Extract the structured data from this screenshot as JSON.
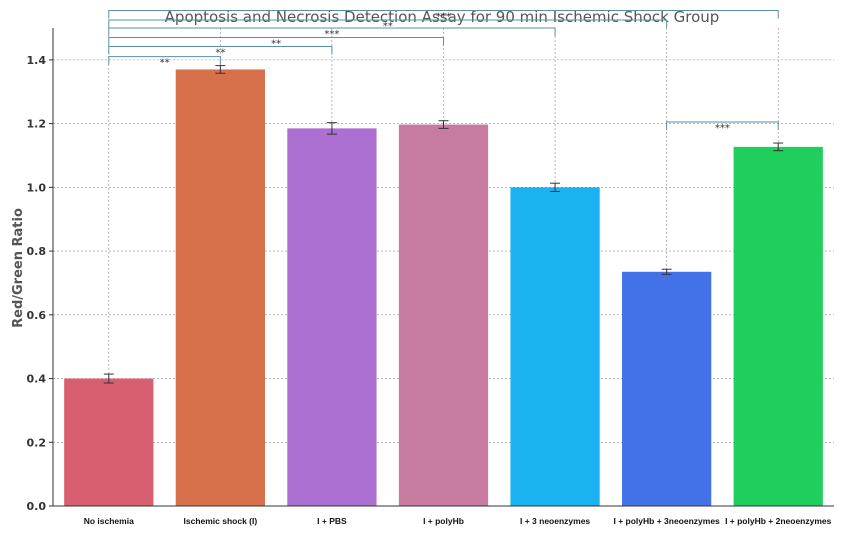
{
  "chart_data": {
    "type": "bar",
    "title": "Apoptosis and Necrosis Detection Assay for 90 min Ischemic Shock Group",
    "xlabel": "",
    "ylabel": "Red/Green Ratio",
    "ylim": [
      0,
      1.5
    ],
    "yticks": [
      "0.0",
      "0.2",
      "0.4",
      "0.6",
      "0.8",
      "1.0",
      "1.2",
      "1.4"
    ],
    "grid": true,
    "categories": [
      "No ischemia",
      "Ischemic shock (I)",
      "I + PBS",
      "I + polyHb",
      "I + 3 neoenzymes",
      "I + polyHb + 3neoenzymes",
      "I + polyHb + 2neoenzymes"
    ],
    "values": [
      0.4,
      1.37,
      1.185,
      1.197,
      1.0,
      0.735,
      1.127
    ],
    "errors": [
      0.014,
      0.012,
      0.018,
      0.012,
      0.013,
      0.008,
      0.012
    ],
    "colors": [
      "#d75f6f",
      "#d7714b",
      "#ac6fd2",
      "#c67b9f",
      "#1ab2f0",
      "#4271e8",
      "#1fce5d"
    ],
    "significance": [
      {
        "from": 0,
        "to": 1,
        "label": "**",
        "level": 1.41
      },
      {
        "from": 0,
        "to": 2,
        "label": "**",
        "level": 1.442
      },
      {
        "from": 0,
        "to": 3,
        "label": "**",
        "level": 1.47
      },
      {
        "from": 0,
        "to": 4,
        "label": "***",
        "level": 1.5
      },
      {
        "from": 0,
        "to": 5,
        "label": "**",
        "level": 1.525
      },
      {
        "from": 0,
        "to": 6,
        "label": "***",
        "level": 1.555
      },
      {
        "from": 5,
        "to": 6,
        "label": "***",
        "level": 1.205
      }
    ]
  }
}
